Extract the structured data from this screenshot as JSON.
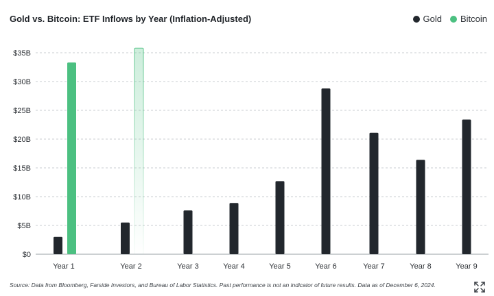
{
  "header": {
    "title": "Gold vs. Bitcoin: ETF Inflows by Year (Inflation-Adjusted)"
  },
  "legend": [
    {
      "label": "Gold",
      "color": "#22272d"
    },
    {
      "label": "Bitcoin",
      "color": "#4cc081"
    }
  ],
  "footer": {
    "source": "Source: Data from Bloomberg, Farside Investors, and Bureau of Labor Statistics. Past performance is not an indicator of future results. Data as of December 6, 2024."
  },
  "icons": {
    "expand": "expand-icon"
  },
  "chart_data": {
    "type": "bar",
    "title": "Gold vs. Bitcoin: ETF Inflows by Year (Inflation-Adjusted)",
    "categories": [
      "Year 1",
      "Year 2",
      "Year 3",
      "Year 4",
      "Year 5",
      "Year 6",
      "Year 7",
      "Year 8",
      "Year 9"
    ],
    "series": [
      {
        "name": "Gold",
        "color": "#22272d",
        "values": [
          3.0,
          5.5,
          7.6,
          8.9,
          12.7,
          28.8,
          21.1,
          16.4,
          23.4
        ]
      },
      {
        "name": "Bitcoin",
        "color": "#4cc081",
        "values": [
          33.3,
          35.8,
          null,
          null,
          null,
          null,
          null,
          null,
          null
        ],
        "note_year2": "shown as faded outline"
      }
    ],
    "yticks": [
      0,
      5,
      10,
      15,
      20,
      25,
      30,
      35
    ],
    "ytick_labels": [
      "$0",
      "$5B",
      "$10B",
      "$15B",
      "$20B",
      "$25B",
      "$30B",
      "$35B"
    ],
    "ylim": [
      0,
      35
    ],
    "grid": "horizontal dashed",
    "legend_position": "top-right"
  }
}
